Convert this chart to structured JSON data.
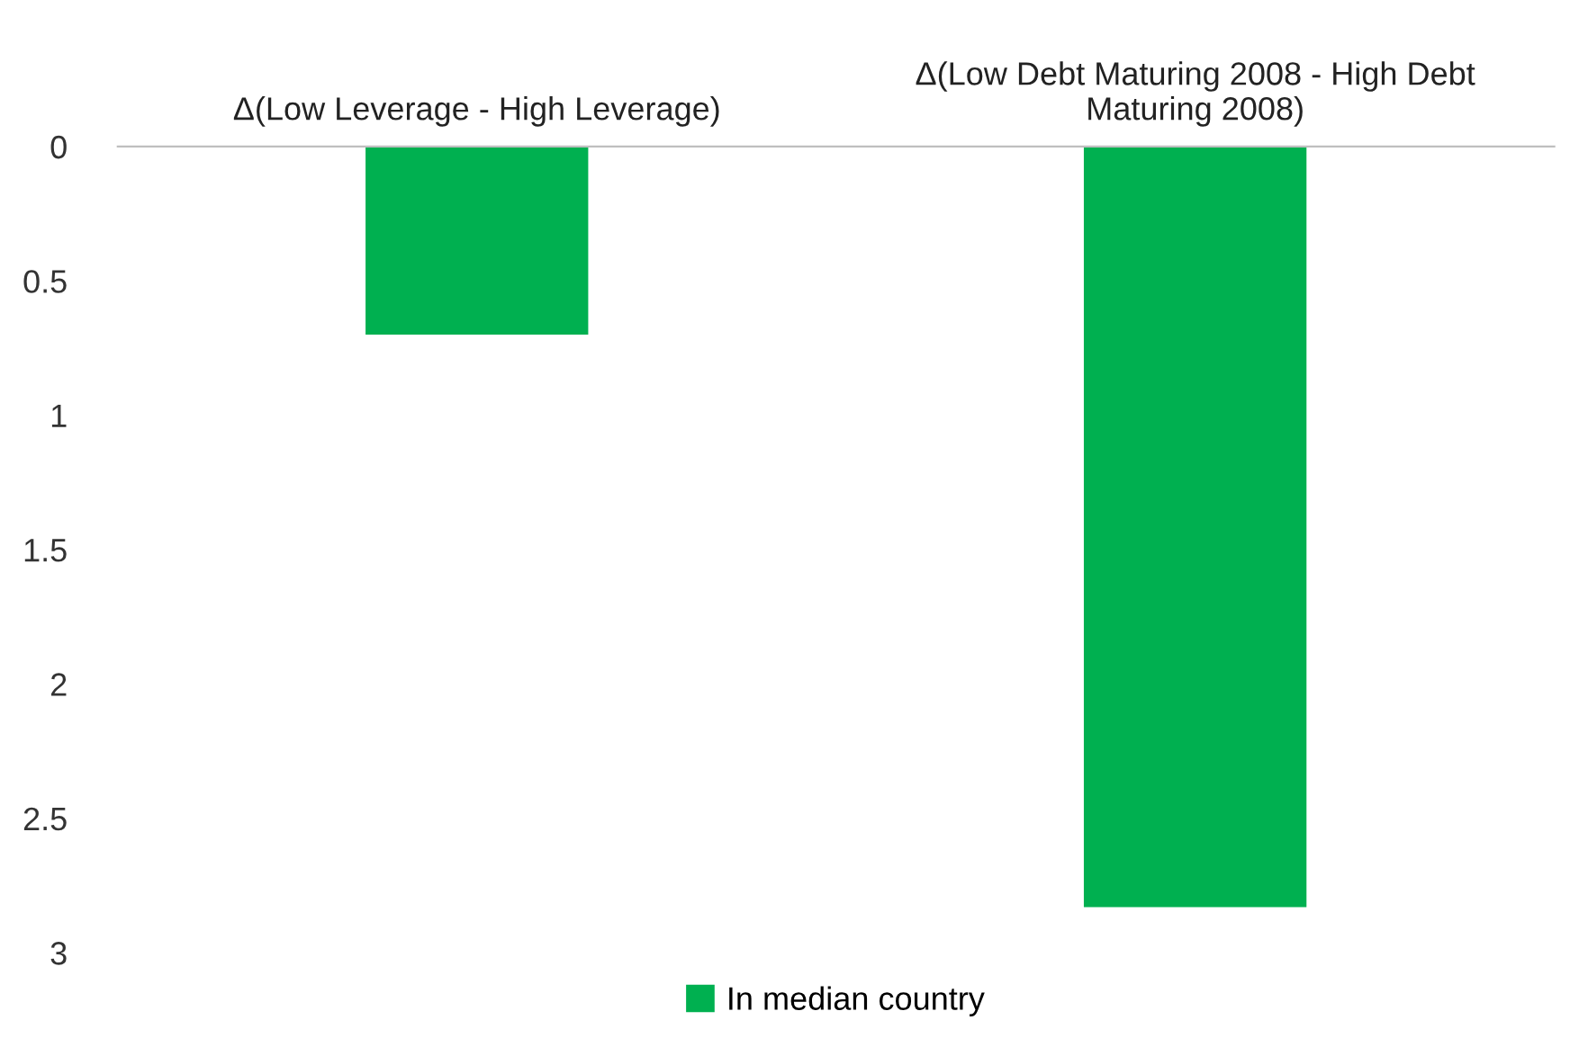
{
  "chart_data": {
    "type": "bar",
    "categories": [
      "Δ(Low Leverage - High Leverage)",
      "Δ(Low Debt Maturing 2008 - High Debt Maturing 2008)"
    ],
    "series": [
      {
        "name": "In median country",
        "color": "#00b050",
        "values": [
          0.7,
          2.83
        ]
      }
    ],
    "ylim": [
      3,
      0
    ],
    "yticks": [
      0,
      0.5,
      1,
      1.5,
      2,
      2.5,
      3
    ],
    "grid": false,
    "legend": "bottom"
  }
}
